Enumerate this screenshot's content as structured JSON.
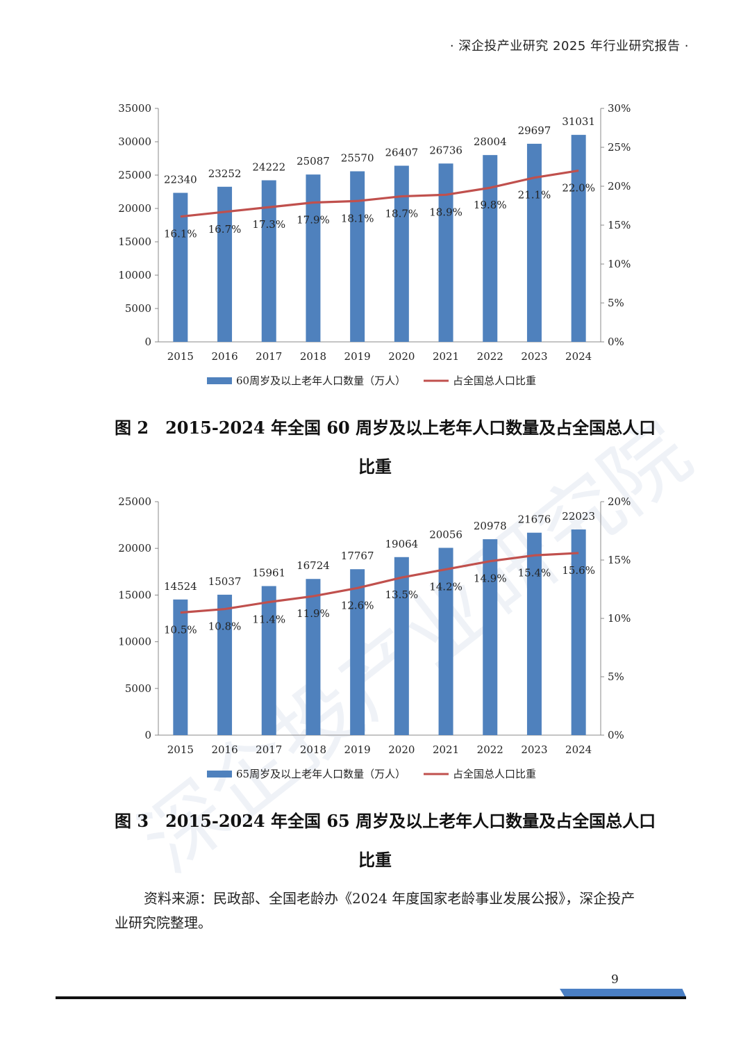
{
  "header": {
    "text": "· 深企投产业研究 2025 年行业研究报告 ·"
  },
  "watermark": {
    "text": "深企投产业研究院"
  },
  "figures": [
    {
      "caption": {
        "number": "图 2",
        "title_line1": "2015-2024 年全国 60 周岁及以上老年人口数量及占全国总人口",
        "title_line2": "比重"
      }
    },
    {
      "caption": {
        "number": "图 3",
        "title_line1": "2015-2024 年全国 65 周岁及以上老年人口数量及占全国总人口",
        "title_line2": "比重"
      }
    }
  ],
  "chart_data": [
    {
      "type": "bar",
      "categories": [
        "2015",
        "2016",
        "2017",
        "2018",
        "2019",
        "2020",
        "2021",
        "2022",
        "2023",
        "2024"
      ],
      "series": [
        {
          "name": "60周岁及以上老年人口数量（万人）",
          "type": "bar",
          "axis": "left",
          "values": [
            22340,
            23252,
            24222,
            25087,
            25570,
            26407,
            26736,
            28004,
            29697,
            31031
          ],
          "labels": [
            "22340",
            "23252",
            "24222",
            "25087",
            "25570",
            "26407",
            "26736",
            "28004",
            "29697",
            "31031"
          ],
          "color": "#4f81bd"
        },
        {
          "name": "占全国总人口比重",
          "type": "line",
          "axis": "right",
          "values": [
            16.1,
            16.7,
            17.3,
            17.9,
            18.1,
            18.7,
            18.9,
            19.8,
            21.1,
            22.0
          ],
          "labels": [
            "16.1%",
            "16.7%",
            "17.3%",
            "17.9%",
            "18.1%",
            "18.7%",
            "18.9%",
            "19.8%",
            "21.1%",
            "22.0%"
          ],
          "color": "#c0504d"
        }
      ],
      "ylim": [
        0,
        35000
      ],
      "yticks": [
        "0",
        "5000",
        "10000",
        "15000",
        "20000",
        "25000",
        "30000",
        "35000"
      ],
      "y2lim": [
        0,
        30
      ],
      "y2ticks": [
        "0%",
        "5%",
        "10%",
        "15%",
        "20%",
        "25%",
        "30%"
      ],
      "legend": "bottom"
    },
    {
      "type": "bar",
      "categories": [
        "2015",
        "2016",
        "2017",
        "2018",
        "2019",
        "2020",
        "2021",
        "2022",
        "2023",
        "2024"
      ],
      "series": [
        {
          "name": "65周岁及以上老年人口数量（万人）",
          "type": "bar",
          "axis": "left",
          "values": [
            14524,
            15037,
            15961,
            16724,
            17767,
            19064,
            20056,
            20978,
            21676,
            22023
          ],
          "labels": [
            "14524",
            "15037",
            "15961",
            "16724",
            "17767",
            "19064",
            "20056",
            "20978",
            "21676",
            "22023"
          ],
          "color": "#4f81bd"
        },
        {
          "name": "占全国总人口比重",
          "type": "line",
          "axis": "right",
          "values": [
            10.5,
            10.8,
            11.4,
            11.9,
            12.6,
            13.5,
            14.2,
            14.9,
            15.4,
            15.6
          ],
          "labels": [
            "10.5%",
            "10.8%",
            "11.4%",
            "11.9%",
            "12.6%",
            "13.5%",
            "14.2%",
            "14.9%",
            "15.4%",
            "15.6%"
          ],
          "color": "#c0504d"
        }
      ],
      "ylim": [
        0,
        25000
      ],
      "yticks": [
        "0",
        "5000",
        "10000",
        "15000",
        "20000",
        "25000"
      ],
      "y2lim": [
        0,
        20
      ],
      "y2ticks": [
        "0%",
        "5%",
        "10%",
        "15%",
        "20%"
      ],
      "legend": "bottom"
    }
  ],
  "source": {
    "text": "资料来源：民政部、全国老龄办《2024 年度国家老龄事业发展公报》，深企投产业研究院整理。"
  },
  "page": {
    "number": "9"
  }
}
